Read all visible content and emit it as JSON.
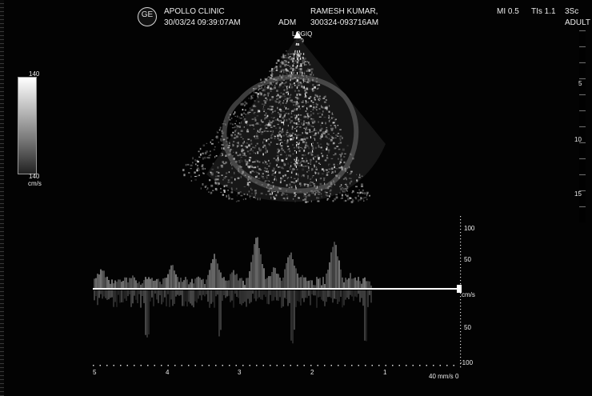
{
  "header": {
    "clinic": "APOLLO CLINIC",
    "datetime": "30/03/24 09:39:07AM",
    "operator": "ADM",
    "patient": "RAMESH KUMAR,",
    "patient_id": "300324-093716AM",
    "mi": "MI 0.5",
    "tis": "TIs 1.1",
    "probe": "3Sc",
    "mode": "ADULT"
  },
  "logo": {
    "text": "GE"
  },
  "beam": {
    "logiq": "LOGIQ",
    "p": "P9"
  },
  "grayscale": {
    "top": "140",
    "bottom": "140",
    "unit": "cm/s"
  },
  "depth_scale": {
    "marks": [
      "5",
      "10",
      "15"
    ]
  },
  "doppler": {
    "labels": [
      "100",
      "50",
      "cm/s",
      "50",
      "-100"
    ],
    "bottom_labels": [
      "5",
      "4",
      "3",
      "2",
      "1",
      "40 mm/s",
      "0"
    ]
  }
}
